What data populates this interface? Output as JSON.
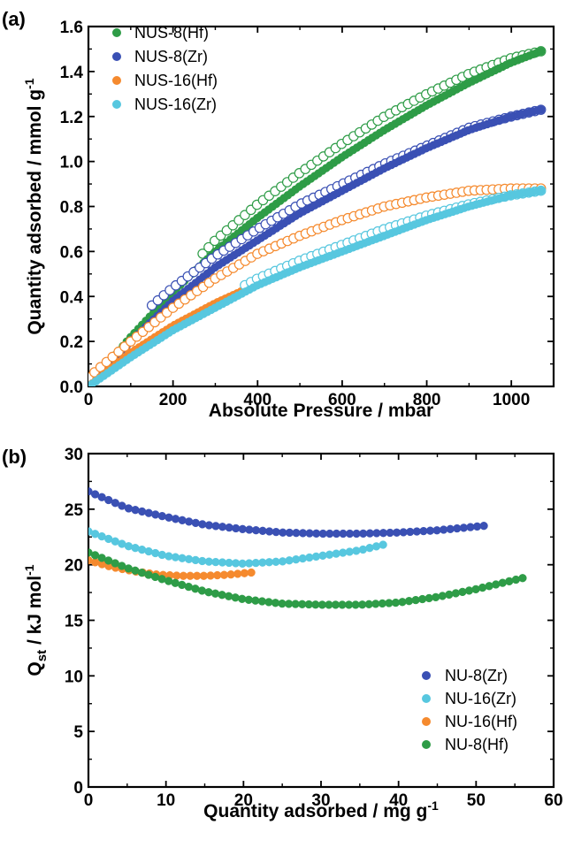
{
  "colors": {
    "green": "#2e9c47",
    "blue": "#3a50b4",
    "orange": "#f58a2e",
    "cyan": "#57c7df"
  },
  "panels": {
    "a": {
      "label": "(a)"
    },
    "b": {
      "label": "(b)"
    }
  },
  "chart_data": [
    {
      "type": "scatter",
      "panel": "(a)",
      "xlabel": "Absolute Pressure / mbar",
      "ylabel": "Quantity adsorbed / mmol g",
      "ylabel_superscript": "-1",
      "xlim": [
        0,
        1100
      ],
      "ylim": [
        0,
        1.6
      ],
      "xticks": [
        0,
        200,
        400,
        600,
        800,
        1000
      ],
      "yticks": [
        0.0,
        0.2,
        0.4,
        0.6,
        0.8,
        1.0,
        1.2,
        1.4,
        1.6
      ],
      "ytick_labels": [
        "0.0",
        "0.2",
        "0.4",
        "0.6",
        "0.8",
        "1.0",
        "1.2",
        "1.4",
        "1.6"
      ],
      "legend_position": "top-left",
      "marker_note": "filled markers = adsorption, open markers = desorption",
      "series": [
        {
          "name": "NUS-8(Hf)",
          "color": "green",
          "adsorption": {
            "x": [
              0,
              100,
              200,
              300,
              400,
              500,
              600,
              700,
              800,
              900,
              1000,
              1070
            ],
            "y": [
              0.0,
              0.22,
              0.42,
              0.6,
              0.75,
              0.89,
              1.02,
              1.14,
              1.25,
              1.35,
              1.44,
              1.49
            ]
          },
          "desorption": {
            "x": [
              270,
              300,
              400,
              500,
              600,
              700,
              800,
              900,
              1000,
              1070
            ],
            "y": [
              0.59,
              0.65,
              0.81,
              0.95,
              1.08,
              1.2,
              1.3,
              1.39,
              1.46,
              1.49
            ]
          }
        },
        {
          "name": "NUS-8(Zr)",
          "color": "blue",
          "adsorption": {
            "x": [
              0,
              100,
              200,
              300,
              400,
              500,
              600,
              700,
              800,
              900,
              1000,
              1070
            ],
            "y": [
              0.0,
              0.2,
              0.38,
              0.53,
              0.65,
              0.77,
              0.87,
              0.97,
              1.06,
              1.14,
              1.2,
              1.23
            ]
          },
          "desorption": {
            "x": [
              150,
              200,
              300,
              400,
              500,
              600,
              700,
              800,
              900,
              1000,
              1070
            ],
            "y": [
              0.36,
              0.44,
              0.58,
              0.7,
              0.81,
              0.9,
              0.99,
              1.07,
              1.15,
              1.2,
              1.23
            ]
          }
        },
        {
          "name": "NUS-16(Hf)",
          "color": "orange",
          "adsorption": {
            "x": [
              0,
              100,
              200,
              300,
              370
            ],
            "y": [
              0.0,
              0.15,
              0.27,
              0.37,
              0.43
            ]
          },
          "desorption": {
            "x": [
              0,
              100,
              200,
              300,
              400,
              500,
              600,
              700,
              800,
              900,
              1000,
              1070
            ],
            "y": [
              0.04,
              0.2,
              0.35,
              0.48,
              0.59,
              0.67,
              0.74,
              0.8,
              0.84,
              0.87,
              0.88,
              0.88
            ]
          }
        },
        {
          "name": "NUS-16(Zr)",
          "color": "cyan",
          "adsorption": {
            "x": [
              0,
              100,
              200,
              300,
              400,
              500,
              600,
              700,
              800,
              900,
              1000,
              1070
            ],
            "y": [
              0.0,
              0.13,
              0.25,
              0.35,
              0.45,
              0.53,
              0.6,
              0.67,
              0.74,
              0.8,
              0.85,
              0.87
            ]
          },
          "desorption": {
            "x": [
              370,
              400,
              500,
              600,
              700,
              800,
              900,
              1000,
              1070
            ],
            "y": [
              0.45,
              0.48,
              0.56,
              0.63,
              0.7,
              0.76,
              0.81,
              0.85,
              0.87
            ]
          }
        }
      ]
    },
    {
      "type": "scatter",
      "panel": "(b)",
      "xlabel": "Quantity adsorbed / mg g",
      "xlabel_superscript": "-1",
      "ylabel": "Q",
      "ylabel_subscript": "st",
      "ylabel_unit": " / kJ mol",
      "ylabel_superscript": "-1",
      "xlim": [
        0,
        60
      ],
      "ylim": [
        0,
        30
      ],
      "xticks": [
        0,
        10,
        20,
        30,
        40,
        50,
        60
      ],
      "yticks": [
        0,
        5,
        10,
        15,
        20,
        25,
        30
      ],
      "legend_position": "bottom-right",
      "series": [
        {
          "name": "NU-8(Zr)",
          "color": "blue",
          "x": [
            0,
            5,
            10,
            15,
            20,
            25,
            30,
            35,
            40,
            45,
            51
          ],
          "y": [
            26.6,
            25.1,
            24.3,
            23.6,
            23.2,
            22.9,
            22.8,
            22.8,
            22.9,
            23.1,
            23.5
          ]
        },
        {
          "name": "NU-16(Zr)",
          "color": "cyan",
          "x": [
            0,
            5,
            10,
            15,
            20,
            25,
            30,
            35,
            38
          ],
          "y": [
            23.0,
            21.7,
            20.8,
            20.3,
            20.1,
            20.3,
            20.8,
            21.3,
            21.8
          ]
        },
        {
          "name": "NU-16(Hf)",
          "color": "orange",
          "x": [
            0,
            3,
            6,
            9,
            12,
            15,
            18,
            21
          ],
          "y": [
            20.4,
            19.8,
            19.4,
            19.1,
            19.0,
            19.0,
            19.1,
            19.3
          ]
        },
        {
          "name": "NU-8(Hf)",
          "color": "green",
          "x": [
            0,
            5,
            10,
            15,
            20,
            25,
            30,
            35,
            40,
            45,
            50,
            56
          ],
          "y": [
            21.1,
            19.7,
            18.6,
            17.6,
            16.9,
            16.5,
            16.4,
            16.4,
            16.6,
            17.1,
            17.8,
            18.8
          ]
        }
      ]
    }
  ]
}
